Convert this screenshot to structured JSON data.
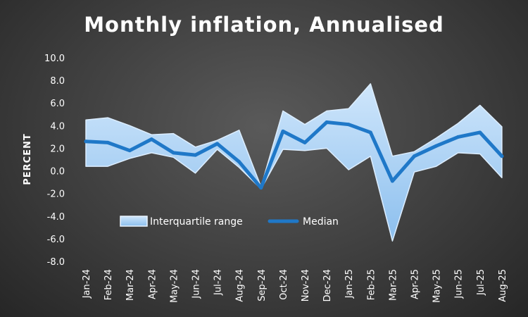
{
  "chart_data": {
    "type": "area",
    "title": "Monthly inflation, Annualised",
    "xlabel": "",
    "ylabel": "PERCENT",
    "ylim": [
      -8,
      10
    ],
    "yticks": [
      "10.0",
      "8.0",
      "6.0",
      "4.0",
      "2.0",
      "0.0",
      "-2.0",
      "-4.0",
      "-6.0",
      "-8.0"
    ],
    "ytick_values": [
      10,
      8,
      6,
      4,
      2,
      0,
      -2,
      -4,
      -6,
      -8
    ],
    "categories": [
      "Jan-24",
      "Feb-24",
      "Mar-24",
      "Apr-24",
      "May-24",
      "Jun-24",
      "Jul-24",
      "Aug-24",
      "Sep-24",
      "Oct-24",
      "Nov-24",
      "Dec-24",
      "Jan-25",
      "Feb-25",
      "Mar-25",
      "Apr-25",
      "May-25",
      "Jun-25",
      "Jul-25",
      "Aug-25"
    ],
    "series": [
      {
        "name": "Interquartile range",
        "kind": "band",
        "upper": [
          4.5,
          4.7,
          4.0,
          3.2,
          3.3,
          2.1,
          2.7,
          3.6,
          -1.4,
          5.3,
          4.1,
          5.3,
          5.5,
          7.7,
          1.3,
          1.7,
          2.9,
          4.2,
          5.8,
          3.9
        ],
        "lower": [
          0.4,
          0.4,
          1.1,
          1.6,
          1.2,
          -0.2,
          1.9,
          0.3,
          -1.6,
          1.9,
          1.8,
          2.0,
          0.1,
          1.3,
          -6.2,
          -0.1,
          0.4,
          1.6,
          1.5,
          -0.6
        ]
      },
      {
        "name": "Median",
        "kind": "line",
        "values": [
          2.6,
          2.5,
          1.8,
          2.8,
          1.6,
          1.4,
          2.4,
          0.8,
          -1.5,
          3.5,
          2.5,
          4.3,
          4.1,
          3.4,
          -0.9,
          1.3,
          2.2,
          3.0,
          3.4,
          1.3
        ]
      }
    ],
    "legend": {
      "position": "bottom-left",
      "items": [
        "Interquartile range",
        "Median"
      ]
    },
    "grid": false,
    "colors": {
      "band_fill": "#9ccaf2",
      "band_edge": "#ddeeff",
      "median": "#1f78c8",
      "text": "#ffffff"
    }
  }
}
